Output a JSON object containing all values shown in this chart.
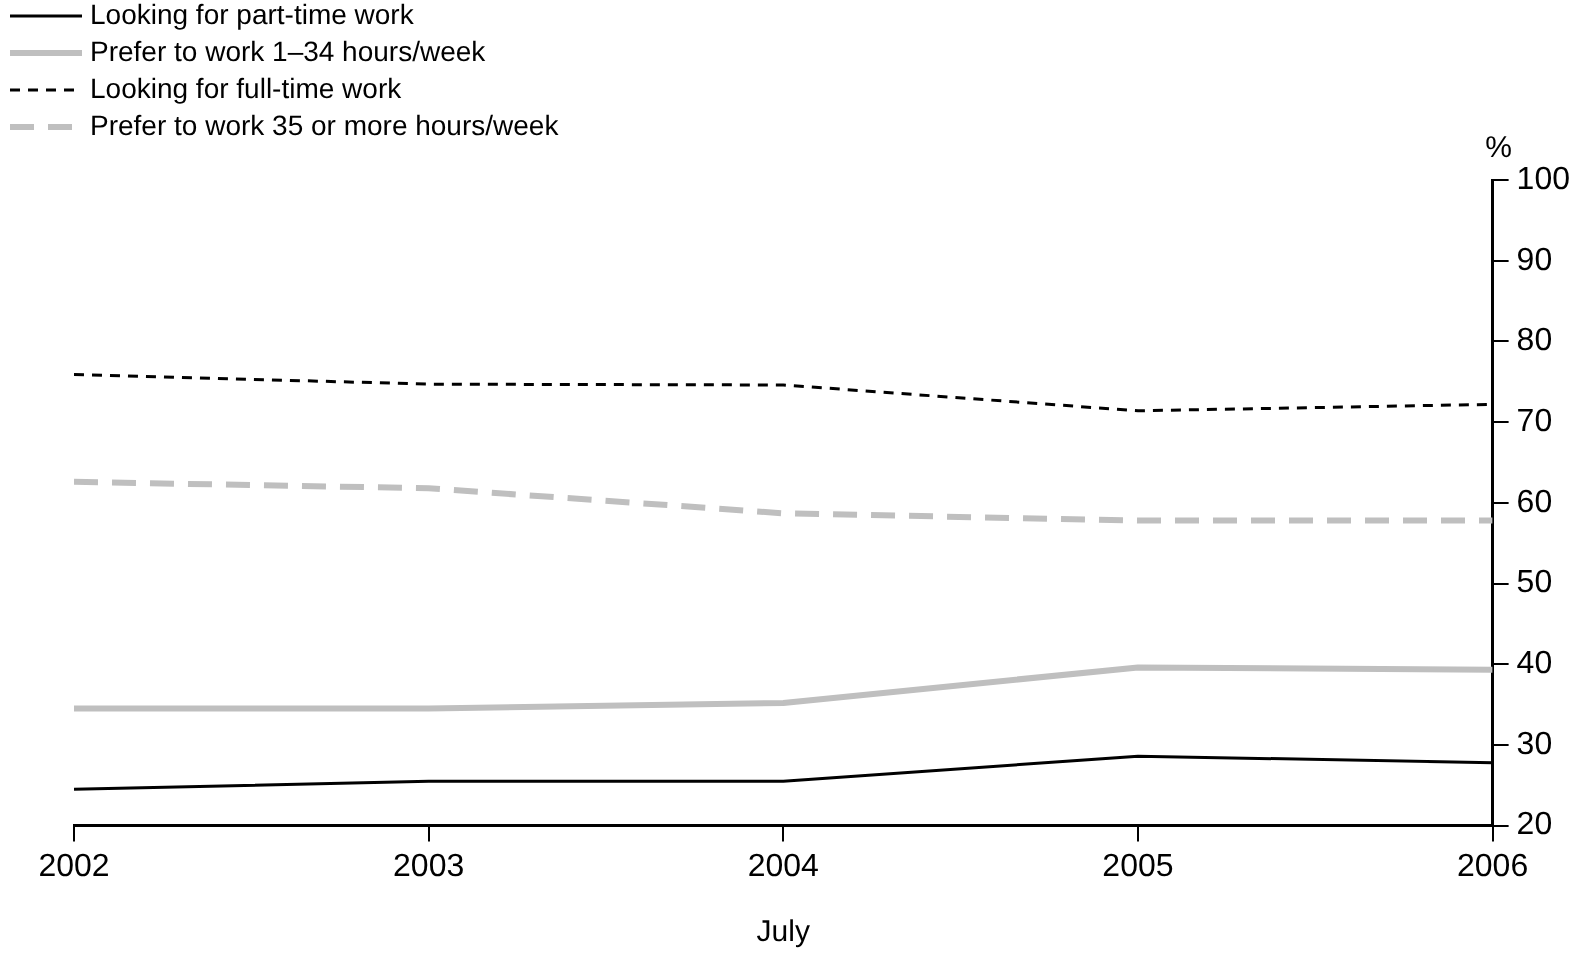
{
  "chart_data": {
    "type": "line",
    "xlabel": "July",
    "ylabel": "%",
    "x": [
      2002,
      2003,
      2004,
      2005,
      2006
    ],
    "series": [
      {
        "name": "Looking for part-time work",
        "color": "#000000",
        "line_style": "solid",
        "values": [
          24.5,
          25.5,
          25.5,
          28.6,
          27.8
        ]
      },
      {
        "name": "Prefer to work 1–34 hours/week",
        "color": "#bfbfbf",
        "line_style": "solid",
        "values": [
          34.5,
          34.5,
          35.2,
          39.6,
          39.3
        ]
      },
      {
        "name": "Looking for full-time work",
        "color": "#000000",
        "line_style": "dashed",
        "values": [
          75.9,
          74.7,
          74.6,
          71.4,
          72.2
        ]
      },
      {
        "name": "Prefer to work 35 or more hours/week",
        "color": "#bfbfbf",
        "line_style": "dashed",
        "values": [
          62.6,
          61.8,
          58.7,
          57.8,
          57.8
        ]
      }
    ],
    "xlim": [
      2002,
      2006
    ],
    "xticks": [
      2002,
      2003,
      2004,
      2005,
      2006
    ],
    "ylim": [
      20,
      100
    ],
    "yticks": [
      20,
      30,
      40,
      50,
      60,
      70,
      80,
      90,
      100
    ],
    "grid": false,
    "legend": "top left"
  }
}
